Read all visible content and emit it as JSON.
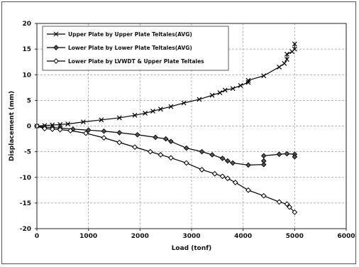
{
  "chart_data": {
    "type": "line",
    "title": "",
    "xlabel": "Load (tonf)",
    "ylabel": "Displacement (mm)",
    "xlim": [
      0,
      6000
    ],
    "ylim": [
      -20,
      20
    ],
    "xticks": [
      0,
      1000,
      2000,
      3000,
      4000,
      5000,
      6000
    ],
    "yticks": [
      -20,
      -15,
      -10,
      -5,
      0,
      5,
      10,
      15,
      20
    ],
    "grid": true,
    "legend_position": "top-left",
    "series": [
      {
        "name": "Upper Plate by Upper Plate Teltales(AVG)",
        "marker": "x",
        "color": "#000000",
        "points": [
          [
            0,
            0
          ],
          [
            150,
            0.1
          ],
          [
            300,
            0.2
          ],
          [
            450,
            0.3
          ],
          [
            600,
            0.4
          ],
          [
            900,
            0.8
          ],
          [
            1250,
            1.2
          ],
          [
            1600,
            1.6
          ],
          [
            1900,
            2.1
          ],
          [
            2100,
            2.5
          ],
          [
            2250,
            2.9
          ],
          [
            2400,
            3.3
          ],
          [
            2600,
            3.8
          ],
          [
            2850,
            4.5
          ],
          [
            3150,
            5.2
          ],
          [
            3400,
            6.0
          ],
          [
            3550,
            6.5
          ],
          [
            3650,
            7.0
          ],
          [
            3800,
            7.3
          ],
          [
            3950,
            7.9
          ],
          [
            4100,
            8.5
          ],
          [
            4100,
            8.9
          ],
          [
            4400,
            9.8
          ],
          [
            4700,
            11.5
          ],
          [
            4800,
            12.2
          ],
          [
            4850,
            13.0
          ],
          [
            4850,
            14.0
          ],
          [
            4950,
            14.5
          ],
          [
            5000,
            15.0
          ],
          [
            5000,
            16.0
          ]
        ]
      },
      {
        "name": "Lower Plate by Lower Plate Teltales(AVG)",
        "marker": "diamond",
        "color": "#000000",
        "points": [
          [
            0,
            0
          ],
          [
            150,
            -0.2
          ],
          [
            300,
            -0.3
          ],
          [
            450,
            -0.4
          ],
          [
            700,
            -0.6
          ],
          [
            1000,
            -0.8
          ],
          [
            1300,
            -1.0
          ],
          [
            1600,
            -1.3
          ],
          [
            1950,
            -1.7
          ],
          [
            2300,
            -2.2
          ],
          [
            2500,
            -2.5
          ],
          [
            2600,
            -3.0
          ],
          [
            2900,
            -4.3
          ],
          [
            3200,
            -5.0
          ],
          [
            3400,
            -5.6
          ],
          [
            3600,
            -6.3
          ],
          [
            3700,
            -6.8
          ],
          [
            3800,
            -7.2
          ],
          [
            4100,
            -7.6
          ],
          [
            4400,
            -7.5
          ],
          [
            4400,
            -6.8
          ],
          [
            4400,
            -5.8
          ],
          [
            4700,
            -5.5
          ],
          [
            4850,
            -5.4
          ],
          [
            5000,
            -5.5
          ],
          [
            5000,
            -6.0
          ]
        ]
      },
      {
        "name": "Lower Plate by LVWDT & Upper Plate Teltales",
        "marker": "diamond-open",
        "color": "#000000",
        "points": [
          [
            0,
            0
          ],
          [
            150,
            -0.5
          ],
          [
            300,
            -0.6
          ],
          [
            450,
            -0.7
          ],
          [
            650,
            -0.9
          ],
          [
            950,
            -1.4
          ],
          [
            1300,
            -2.3
          ],
          [
            1600,
            -3.2
          ],
          [
            1900,
            -4.1
          ],
          [
            2200,
            -5.0
          ],
          [
            2400,
            -5.6
          ],
          [
            2600,
            -6.2
          ],
          [
            2900,
            -7.2
          ],
          [
            3200,
            -8.5
          ],
          [
            3450,
            -9.3
          ],
          [
            3600,
            -9.8
          ],
          [
            3700,
            -10.2
          ],
          [
            3850,
            -11.0
          ],
          [
            4100,
            -12.5
          ],
          [
            4400,
            -13.6
          ],
          [
            4700,
            -14.8
          ],
          [
            4850,
            -15.2
          ],
          [
            4900,
            -15.8
          ],
          [
            5000,
            -16.8
          ]
        ]
      }
    ]
  }
}
